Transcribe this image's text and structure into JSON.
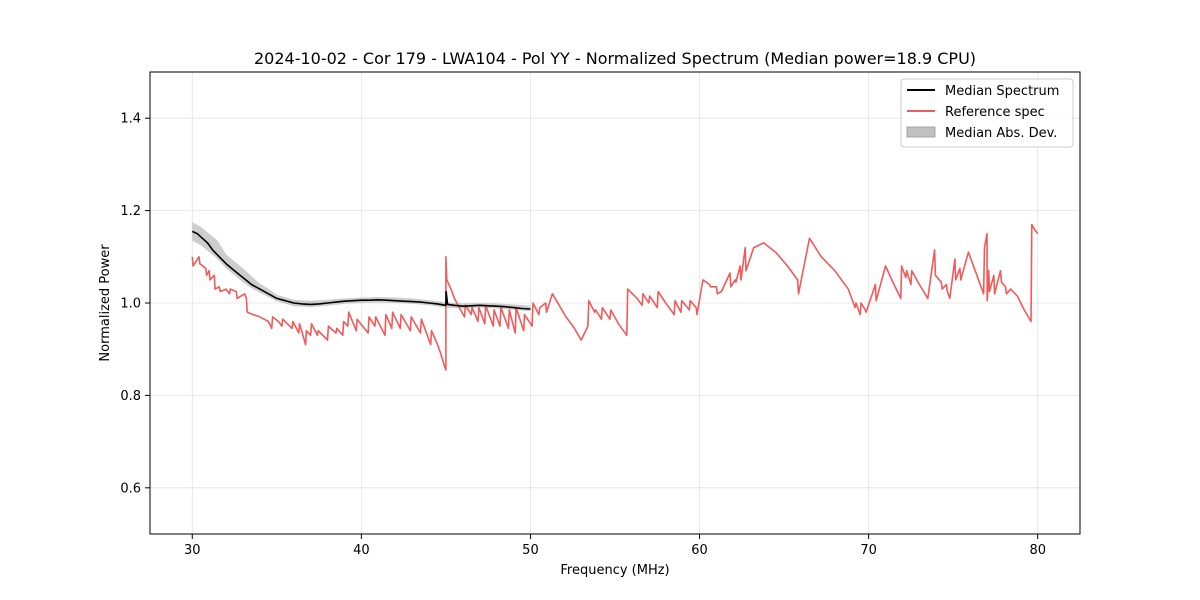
{
  "chart_data": {
    "type": "line",
    "title": "2024-10-02 - Cor 179 - LWA104 - Pol YY - Normalized Spectrum (Median power=18.9 CPU)",
    "xlabel": "Frequency (MHz)",
    "ylabel": "Normalized Power",
    "xlim": [
      27.5,
      82.5
    ],
    "ylim": [
      0.5,
      1.5
    ],
    "xticks": [
      30,
      40,
      50,
      60,
      70,
      80
    ],
    "yticks": [
      0.6,
      0.8,
      1.0,
      1.2,
      1.4
    ],
    "xtick_labels": [
      "30",
      "40",
      "50",
      "60",
      "70",
      "80"
    ],
    "ytick_labels": [
      "0.6",
      "0.8",
      "1.0",
      "1.2",
      "1.4"
    ],
    "grid": true,
    "legend_position": "top-right",
    "colors": {
      "median": "#000000",
      "reference": "#f05a5a",
      "mad": "#c0c0c0"
    },
    "series": [
      {
        "name": "Median Spectrum",
        "x": [
          30.0,
          30.3,
          30.6,
          30.9,
          31.2,
          31.6,
          32.0,
          32.5,
          33.0,
          33.5,
          34.0,
          34.5,
          35.0,
          35.5,
          36.0,
          36.5,
          37.0,
          37.5,
          38.0,
          38.5,
          39.0,
          39.5,
          40.0,
          40.5,
          41.0,
          41.5,
          42.0,
          42.5,
          43.0,
          43.5,
          44.0,
          44.5,
          45.0,
          45.01,
          45.1,
          45.5,
          46.0,
          46.5,
          47.0,
          47.5,
          48.0,
          48.5,
          49.0,
          49.5,
          50.0
        ],
        "values": [
          1.155,
          1.15,
          1.14,
          1.13,
          1.115,
          1.1,
          1.085,
          1.07,
          1.055,
          1.04,
          1.03,
          1.02,
          1.01,
          1.005,
          1.0,
          0.998,
          0.997,
          0.998,
          1.0,
          1.002,
          1.004,
          1.005,
          1.006,
          1.006,
          1.007,
          1.006,
          1.005,
          1.004,
          1.003,
          1.002,
          1.0,
          0.998,
          0.995,
          1.025,
          0.997,
          0.995,
          0.993,
          0.994,
          0.995,
          0.994,
          0.993,
          0.992,
          0.99,
          0.988,
          0.987
        ]
      },
      {
        "name": "Reference spec",
        "x": [
          30.0,
          30.05,
          30.4,
          30.45,
          30.8,
          30.85,
          31.0,
          31.05,
          31.3,
          31.35,
          31.6,
          31.65,
          32.0,
          32.1,
          32.2,
          32.25,
          32.6,
          32.65,
          33.1,
          33.15,
          33.2,
          33.25,
          33.6,
          34.0,
          34.5,
          34.7,
          34.75,
          35.1,
          35.3,
          35.35,
          35.9,
          35.95,
          36.3,
          36.35,
          36.7,
          36.75,
          37.0,
          37.05,
          37.4,
          37.45,
          38.0,
          38.05,
          38.5,
          38.55,
          38.9,
          38.95,
          39.2,
          39.25,
          39.7,
          39.75,
          40.4,
          40.45,
          40.8,
          40.85,
          41.4,
          41.45,
          41.8,
          41.85,
          42.3,
          42.35,
          42.9,
          42.95,
          43.5,
          43.55,
          44.1,
          44.15,
          44.5,
          44.7,
          44.9,
          45.0,
          45.0,
          45.05,
          45.3,
          45.5,
          45.8,
          46.1,
          46.15,
          46.5,
          46.55,
          46.9,
          46.95,
          47.3,
          47.35,
          47.8,
          47.85,
          48.2,
          48.25,
          48.7,
          48.75,
          49.1,
          49.15,
          49.6,
          49.65,
          50.1,
          50.15,
          50.5,
          50.55,
          50.9,
          50.95,
          51.3,
          51.7,
          52.1,
          52.6,
          53.0,
          53.4,
          53.45,
          53.8,
          53.85,
          54.2,
          54.25,
          54.7,
          54.75,
          55.2,
          55.7,
          55.75,
          56.3,
          56.6,
          56.65,
          57.0,
          57.05,
          57.5,
          57.55,
          58.0,
          58.2,
          58.5,
          58.55,
          58.9,
          58.95,
          59.4,
          59.45,
          59.8,
          59.85,
          60.2,
          60.6,
          60.65,
          61.0,
          61.05,
          61.3,
          61.8,
          61.85,
          62.1,
          62.15,
          62.4,
          62.45,
          62.7,
          62.75,
          63.2,
          63.8,
          64.5,
          65.2,
          65.8,
          65.85,
          66.5,
          67.2,
          68.0,
          68.8,
          69.2,
          69.25,
          69.5,
          69.55,
          69.8,
          69.85,
          70.4,
          70.45,
          71.0,
          71.5,
          71.9,
          71.95,
          72.2,
          72.25,
          72.5,
          72.55,
          73.0,
          73.5,
          73.9,
          73.95,
          74.3,
          74.35,
          74.6,
          74.65,
          74.8,
          75.1,
          75.15,
          75.4,
          75.45,
          75.9,
          76.3,
          76.8,
          76.85,
          77.0,
          77.01,
          77.1,
          77.15,
          77.4,
          77.45,
          77.8,
          77.85,
          78.1,
          78.15,
          78.4,
          78.8,
          79.2,
          79.6,
          79.65,
          79.8,
          80.0
        ],
        "values": [
          1.1,
          1.08,
          1.1,
          1.085,
          1.075,
          1.06,
          1.07,
          1.05,
          1.06,
          1.03,
          1.035,
          1.025,
          1.03,
          1.025,
          1.02,
          1.03,
          1.025,
          1.01,
          1.02,
          1.015,
          1.01,
          0.98,
          0.975,
          0.97,
          0.96,
          0.945,
          0.97,
          0.96,
          0.95,
          0.965,
          0.945,
          0.96,
          0.935,
          0.955,
          0.91,
          0.94,
          0.93,
          0.955,
          0.93,
          0.94,
          0.92,
          0.95,
          0.935,
          0.945,
          0.93,
          0.96,
          0.95,
          0.98,
          0.94,
          0.965,
          0.935,
          0.97,
          0.95,
          0.97,
          0.93,
          0.975,
          0.945,
          0.98,
          0.945,
          0.975,
          0.94,
          0.97,
          0.935,
          0.965,
          0.91,
          0.94,
          0.91,
          0.89,
          0.865,
          0.855,
          1.1,
          1.05,
          1.03,
          1.01,
          0.99,
          0.97,
          0.995,
          0.975,
          0.99,
          0.96,
          0.99,
          0.955,
          0.995,
          0.95,
          0.985,
          0.95,
          0.99,
          0.945,
          0.985,
          0.935,
          0.99,
          0.94,
          0.975,
          0.95,
          1.0,
          0.975,
          0.99,
          1.0,
          0.98,
          1.02,
          0.995,
          0.97,
          0.945,
          0.92,
          0.95,
          1.005,
          0.98,
          0.985,
          0.965,
          0.99,
          0.965,
          0.985,
          0.955,
          0.93,
          1.03,
          1.01,
          0.995,
          1.02,
          1.0,
          1.015,
          0.99,
          1.025,
          1.0,
          0.99,
          0.975,
          1.005,
          0.98,
          1.005,
          0.985,
          1.005,
          0.99,
          0.975,
          1.05,
          1.04,
          1.035,
          1.035,
          1.02,
          1.025,
          1.065,
          1.035,
          1.05,
          1.045,
          1.08,
          1.05,
          1.12,
          1.07,
          1.12,
          1.13,
          1.11,
          1.08,
          1.05,
          1.02,
          1.14,
          1.1,
          1.07,
          1.03,
          0.99,
          1.0,
          0.975,
          1.0,
          0.985,
          0.98,
          1.04,
          1.005,
          1.08,
          1.04,
          1.01,
          1.08,
          1.055,
          1.07,
          1.04,
          1.07,
          1.04,
          1.01,
          1.115,
          1.06,
          1.045,
          1.03,
          1.04,
          1.025,
          1.01,
          1.095,
          1.05,
          1.075,
          1.05,
          1.11,
          1.07,
          1.02,
          1.12,
          1.15,
          1.005,
          1.07,
          1.025,
          1.06,
          1.02,
          1.07,
          1.045,
          1.035,
          1.02,
          1.03,
          1.015,
          0.985,
          0.96,
          1.17,
          1.16,
          1.15
        ]
      },
      {
        "name": "Median Abs. Dev.",
        "type": "band",
        "x": [
          30.0,
          30.5,
          31.0,
          31.5,
          32.0,
          32.5,
          33.0,
          33.5,
          34.0,
          34.5,
          35.0,
          36.0,
          37.0,
          38.0,
          39.0,
          40.0,
          41.0,
          42.0,
          43.0,
          44.0,
          45.0,
          46.0,
          47.0,
          48.0,
          49.0,
          50.0
        ],
        "lower": [
          1.135,
          1.125,
          1.11,
          1.095,
          1.075,
          1.06,
          1.045,
          1.032,
          1.022,
          1.013,
          1.004,
          0.993,
          0.991,
          0.994,
          0.998,
          1.0,
          1.001,
          1.0,
          0.998,
          0.995,
          0.99,
          0.988,
          0.99,
          0.988,
          0.985,
          0.982
        ],
        "upper": [
          1.175,
          1.165,
          1.15,
          1.135,
          1.105,
          1.09,
          1.075,
          1.058,
          1.042,
          1.031,
          1.018,
          1.007,
          1.005,
          1.007,
          1.01,
          1.012,
          1.013,
          1.012,
          1.01,
          1.006,
          1.002,
          0.999,
          1.0,
          0.999,
          0.997,
          0.994
        ]
      }
    ],
    "legend": [
      "Median Spectrum",
      "Reference spec",
      "Median Abs. Dev."
    ]
  }
}
